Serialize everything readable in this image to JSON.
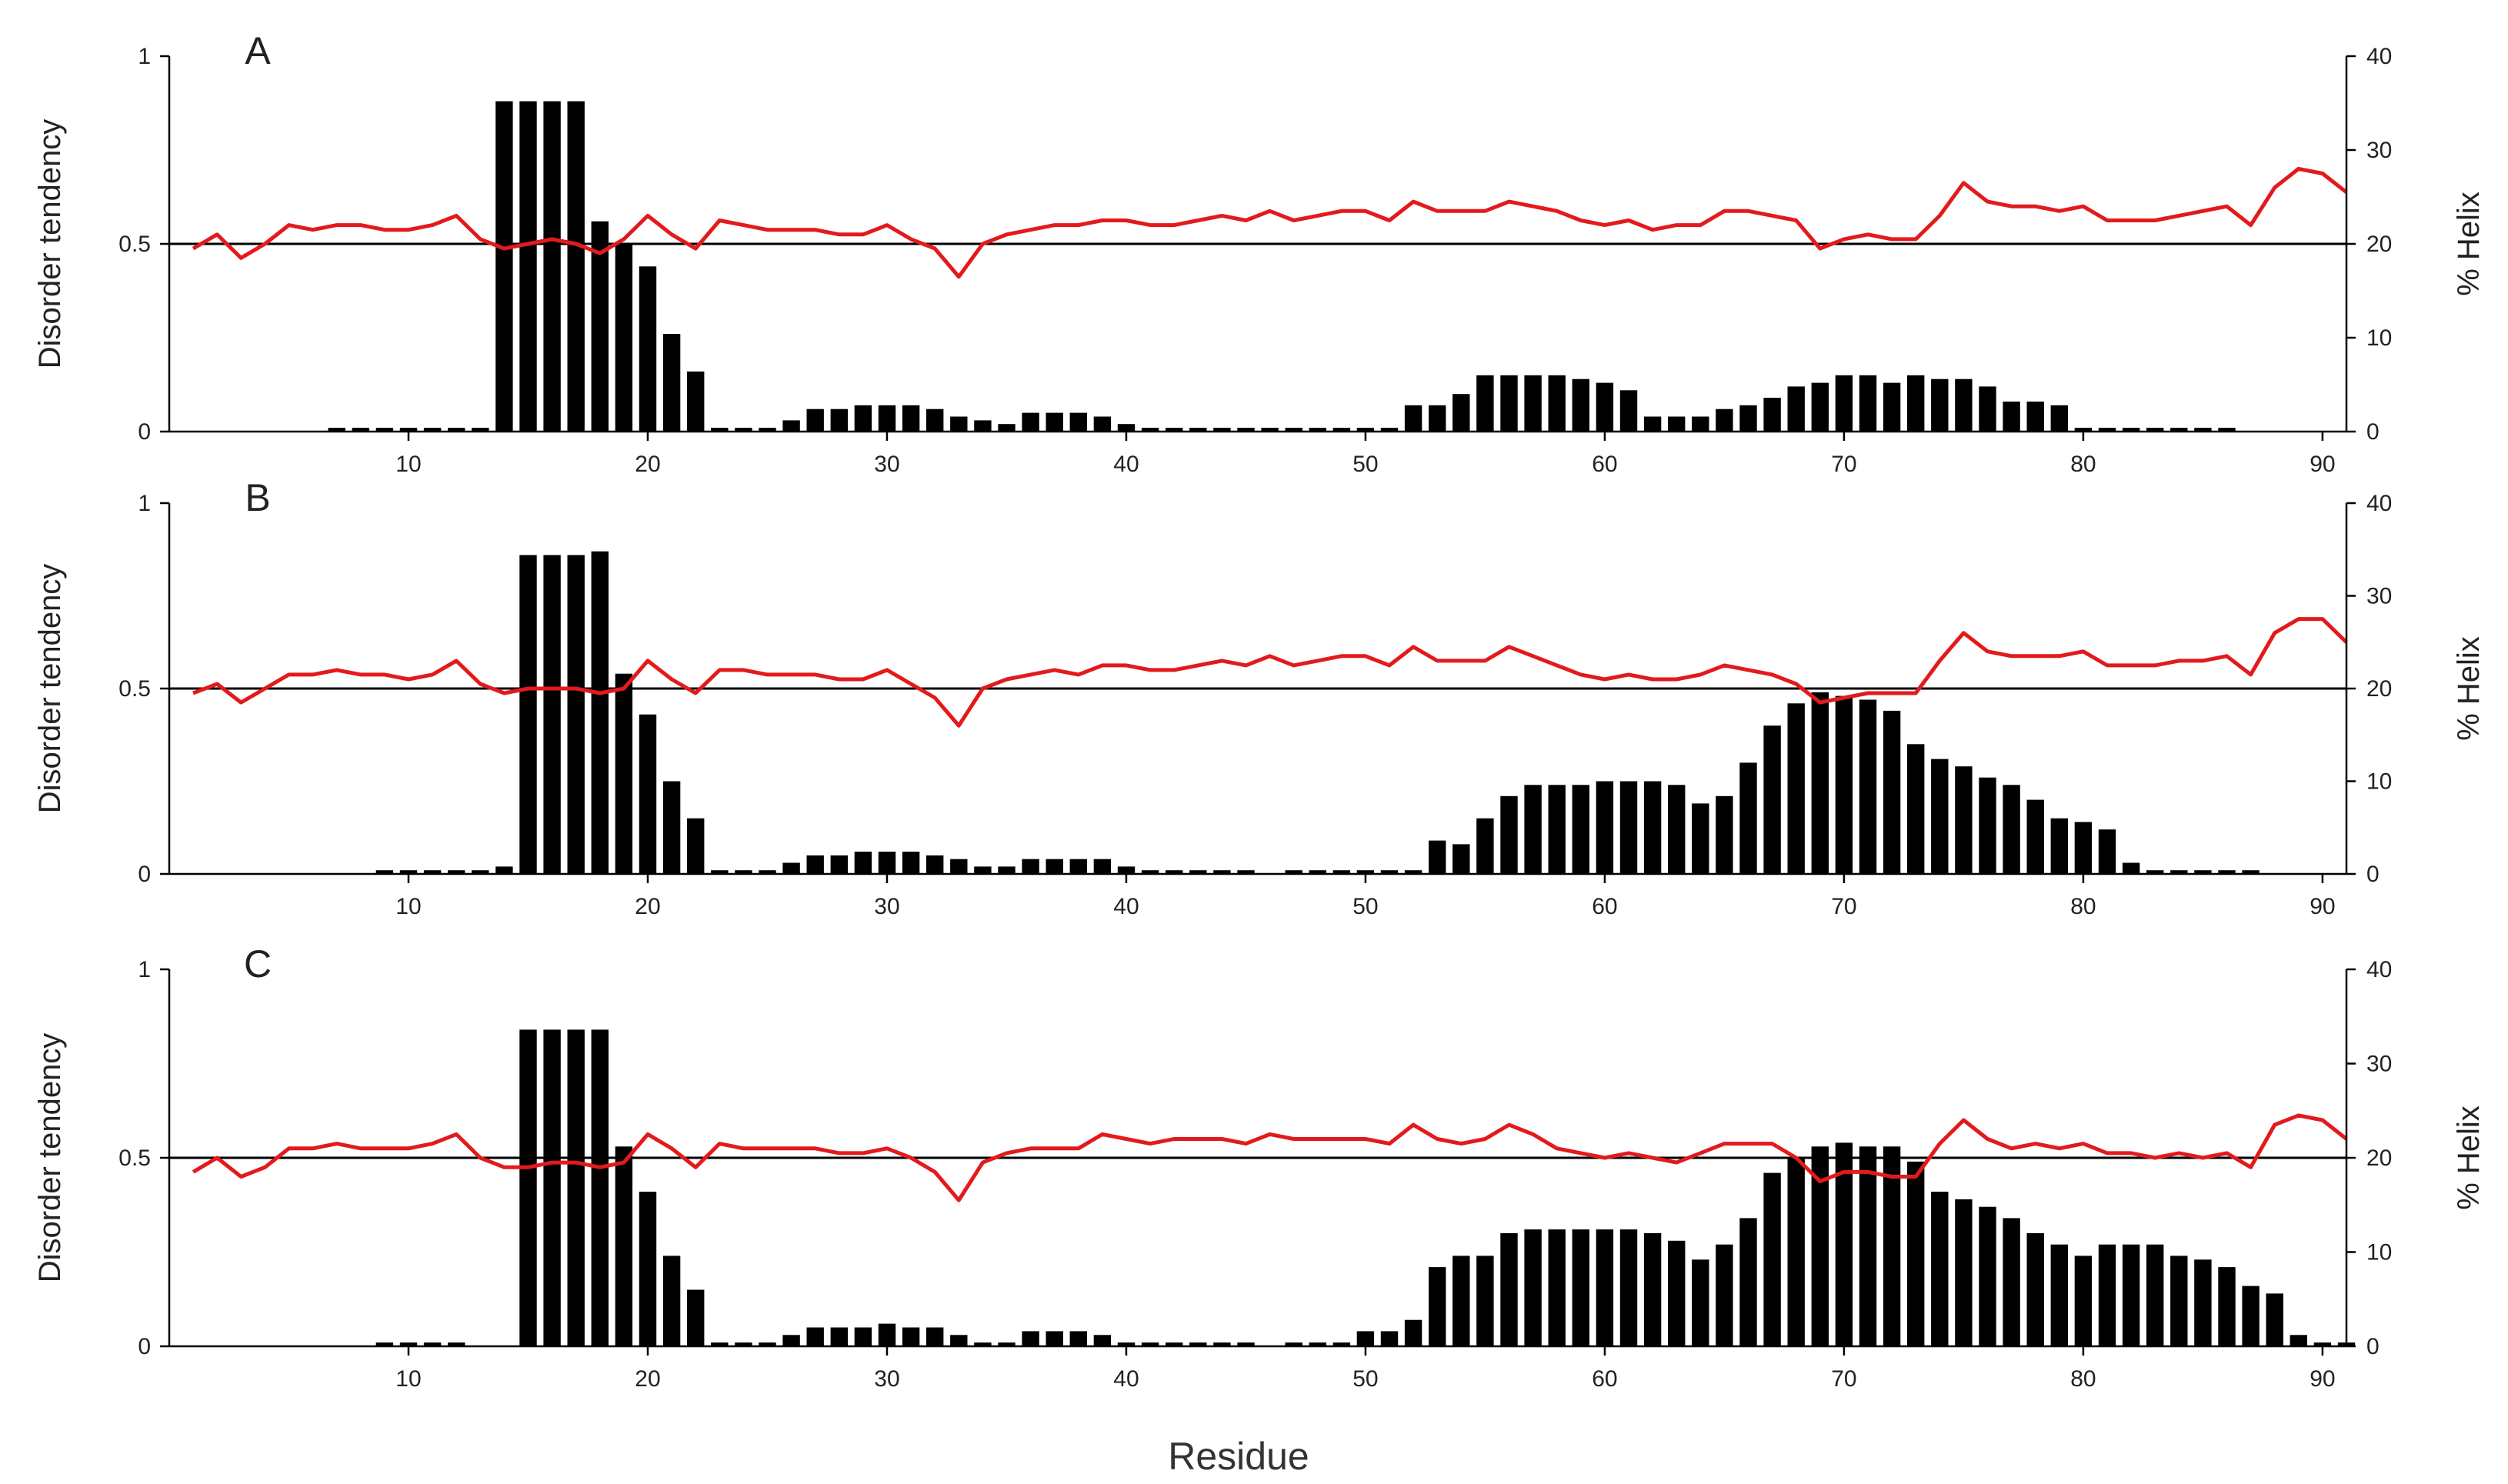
{
  "chart_data": {
    "type": "bar",
    "shared_xlabel": "Residue",
    "x": [
      1,
      2,
      3,
      4,
      5,
      6,
      7,
      8,
      9,
      10,
      11,
      12,
      13,
      14,
      15,
      16,
      17,
      18,
      19,
      20,
      21,
      22,
      23,
      24,
      25,
      26,
      27,
      28,
      29,
      30,
      31,
      32,
      33,
      34,
      35,
      36,
      37,
      38,
      39,
      40,
      41,
      42,
      43,
      44,
      45,
      46,
      47,
      48,
      49,
      50,
      51,
      52,
      53,
      54,
      55,
      56,
      57,
      58,
      59,
      60,
      61,
      62,
      63,
      64,
      65,
      66,
      67,
      68,
      69,
      70,
      71,
      72,
      73,
      74,
      75,
      76,
      77,
      78,
      79,
      80,
      81,
      82,
      83,
      84,
      85,
      86,
      87,
      88,
      89,
      90,
      91
    ],
    "x_ticks": [
      10,
      20,
      30,
      40,
      50,
      60,
      70,
      80,
      90
    ],
    "xlim": [
      0,
      91
    ],
    "colors": {
      "bars": "#000000",
      "helix_line": "#e31a1c",
      "threshold_line": "#000000"
    },
    "panels": [
      {
        "label": "A",
        "ylabel_left": "Disorder tendency",
        "ylabel_right": "% Helix",
        "left_ticks": [
          "0",
          "0.5",
          "1"
        ],
        "right_ticks": [
          "0",
          "10",
          "20",
          "30",
          "40"
        ],
        "ylim_left": [
          0,
          1
        ],
        "ylim_right": [
          0,
          40
        ],
        "threshold": 0.5,
        "series": [
          {
            "type": "bar",
            "axis": "left",
            "values": [
              0,
              0,
              0,
              0,
              0,
              0,
              0.01,
              0.01,
              0.01,
              0.01,
              0.01,
              0.01,
              0.01,
              0.88,
              0.88,
              0.88,
              0.88,
              0.56,
              0.5,
              0.44,
              0.26,
              0.16,
              0.01,
              0.01,
              0.01,
              0.03,
              0.06,
              0.06,
              0.07,
              0.07,
              0.07,
              0.06,
              0.04,
              0.03,
              0.02,
              0.05,
              0.05,
              0.05,
              0.04,
              0.02,
              0.01,
              0.01,
              0.01,
              0.01,
              0.01,
              0.01,
              0.01,
              0.01,
              0.01,
              0.01,
              0.01,
              0.07,
              0.07,
              0.1,
              0.15,
              0.15,
              0.15,
              0.15,
              0.14,
              0.13,
              0.11,
              0.04,
              0.04,
              0.04,
              0.06,
              0.07,
              0.09,
              0.12,
              0.13,
              0.15,
              0.15,
              0.13,
              0.15,
              0.14,
              0.14,
              0.12,
              0.08,
              0.08,
              0.07,
              0.01,
              0.01,
              0.01,
              0.01,
              0.01,
              0.01,
              0.01,
              0,
              0,
              0,
              0,
              0
            ]
          },
          {
            "type": "line",
            "axis": "right",
            "values": [
              19.5,
              21.0,
              18.5,
              20.0,
              22.0,
              21.5,
              22.0,
              22.0,
              21.5,
              21.5,
              22.0,
              23.0,
              20.5,
              19.5,
              20.0,
              20.5,
              20.0,
              19.0,
              20.5,
              23.0,
              21.0,
              19.5,
              22.5,
              22.0,
              21.5,
              21.5,
              21.5,
              21.0,
              21.0,
              22.0,
              20.5,
              19.5,
              16.5,
              20.0,
              21.0,
              21.5,
              22.0,
              22.0,
              22.5,
              22.5,
              22.0,
              22.0,
              22.5,
              23.0,
              22.5,
              23.5,
              22.5,
              23.0,
              23.5,
              23.5,
              22.5,
              24.5,
              23.5,
              23.5,
              23.5,
              24.5,
              24.0,
              23.5,
              22.5,
              22.0,
              22.5,
              21.5,
              22.0,
              22.0,
              23.5,
              23.5,
              23.0,
              22.5,
              19.5,
              20.5,
              21.0,
              20.5,
              20.5,
              23.0,
              26.5,
              24.5,
              24.0,
              24.0,
              23.5,
              24.0,
              22.5,
              22.5,
              22.5,
              23.0,
              23.5,
              24.0,
              22.0,
              26.0,
              28.0,
              27.5,
              25.5
            ]
          }
        ]
      },
      {
        "label": "B",
        "ylabel_left": "Disorder tendency",
        "ylabel_right": "% Helix",
        "left_ticks": [
          "0",
          "0.5",
          "1"
        ],
        "right_ticks": [
          "0",
          "10",
          "20",
          "30",
          "40"
        ],
        "ylim_left": [
          0,
          1
        ],
        "ylim_right": [
          0,
          40
        ],
        "threshold": 0.5,
        "series": [
          {
            "type": "bar",
            "axis": "left",
            "values": [
              0,
              0,
              0,
              0,
              0,
              0,
              0,
              0,
              0.01,
              0.01,
              0.01,
              0.01,
              0.01,
              0.02,
              0.86,
              0.86,
              0.86,
              0.87,
              0.54,
              0.43,
              0.25,
              0.15,
              0.01,
              0.01,
              0.01,
              0.03,
              0.05,
              0.05,
              0.06,
              0.06,
              0.06,
              0.05,
              0.04,
              0.02,
              0.02,
              0.04,
              0.04,
              0.04,
              0.04,
              0.02,
              0.01,
              0.01,
              0.01,
              0.01,
              0.01,
              0,
              0.01,
              0.01,
              0.01,
              0.01,
              0.01,
              0.01,
              0.09,
              0.08,
              0.15,
              0.21,
              0.24,
              0.24,
              0.24,
              0.25,
              0.25,
              0.25,
              0.24,
              0.19,
              0.21,
              0.3,
              0.4,
              0.46,
              0.49,
              0.48,
              0.47,
              0.44,
              0.35,
              0.31,
              0.29,
              0.26,
              0.24,
              0.2,
              0.15,
              0.14,
              0.12,
              0.03,
              0.01,
              0.01,
              0.01,
              0.01,
              0.01,
              0,
              0,
              0,
              0
            ]
          },
          {
            "type": "line",
            "axis": "right",
            "values": [
              19.5,
              20.5,
              18.5,
              20.0,
              21.5,
              21.5,
              22.0,
              21.5,
              21.5,
              21.0,
              21.5,
              23.0,
              20.5,
              19.5,
              20.0,
              20.0,
              20.0,
              19.5,
              20.0,
              23.0,
              21.0,
              19.5,
              22.0,
              22.0,
              21.5,
              21.5,
              21.5,
              21.0,
              21.0,
              22.0,
              20.5,
              19.0,
              16.0,
              20.0,
              21.0,
              21.5,
              22.0,
              21.5,
              22.5,
              22.5,
              22.0,
              22.0,
              22.5,
              23.0,
              22.5,
              23.5,
              22.5,
              23.0,
              23.5,
              23.5,
              22.5,
              24.5,
              23.0,
              23.0,
              23.0,
              24.5,
              23.5,
              22.5,
              21.5,
              21.0,
              21.5,
              21.0,
              21.0,
              21.5,
              22.5,
              22.0,
              21.5,
              20.5,
              18.5,
              19.0,
              19.5,
              19.5,
              19.5,
              23.0,
              26.0,
              24.0,
              23.5,
              23.5,
              23.5,
              24.0,
              22.5,
              22.5,
              22.5,
              23.0,
              23.0,
              23.5,
              21.5,
              26.0,
              27.5,
              27.5,
              25.0
            ]
          }
        ]
      },
      {
        "label": "C",
        "ylabel_left": "Disorder tendency",
        "ylabel_right": "% Helix",
        "left_ticks": [
          "0",
          "0.5",
          "1"
        ],
        "right_ticks": [
          "0",
          "10",
          "20",
          "30",
          "40"
        ],
        "ylim_left": [
          0,
          1
        ],
        "ylim_right": [
          0,
          40
        ],
        "threshold": 0.5,
        "series": [
          {
            "type": "bar",
            "axis": "left",
            "values": [
              0,
              0,
              0,
              0,
              0,
              0,
              0,
              0,
              0.01,
              0.01,
              0.01,
              0.01,
              0,
              0,
              0.84,
              0.84,
              0.84,
              0.84,
              0.53,
              0.41,
              0.24,
              0.15,
              0.01,
              0.01,
              0.01,
              0.03,
              0.05,
              0.05,
              0.05,
              0.06,
              0.05,
              0.05,
              0.03,
              0.01,
              0.01,
              0.04,
              0.04,
              0.04,
              0.03,
              0.01,
              0.01,
              0.01,
              0.01,
              0.01,
              0.01,
              0,
              0.01,
              0.01,
              0.01,
              0.04,
              0.04,
              0.07,
              0.21,
              0.24,
              0.24,
              0.3,
              0.31,
              0.31,
              0.31,
              0.31,
              0.31,
              0.3,
              0.28,
              0.23,
              0.27,
              0.34,
              0.46,
              0.5,
              0.53,
              0.54,
              0.53,
              0.53,
              0.49,
              0.41,
              0.39,
              0.37,
              0.34,
              0.3,
              0.27,
              0.24,
              0.27,
              0.27,
              0.27,
              0.24,
              0.23,
              0.21,
              0.16,
              0.14,
              0.03,
              0.01,
              0.01
            ]
          },
          {
            "type": "line",
            "axis": "right",
            "values": [
              18.5,
              20.0,
              18.0,
              19.0,
              21.0,
              21.0,
              21.5,
              21.0,
              21.0,
              21.0,
              21.5,
              22.5,
              20.0,
              19.0,
              19.0,
              19.5,
              19.5,
              19.0,
              19.5,
              22.5,
              21.0,
              19.0,
              21.5,
              21.0,
              21.0,
              21.0,
              21.0,
              20.5,
              20.5,
              21.0,
              20.0,
              18.5,
              15.5,
              19.5,
              20.5,
              21.0,
              21.0,
              21.0,
              22.5,
              22.0,
              21.5,
              22.0,
              22.0,
              22.0,
              21.5,
              22.5,
              22.0,
              22.0,
              22.0,
              22.0,
              21.5,
              23.5,
              22.0,
              21.5,
              22.0,
              23.5,
              22.5,
              21.0,
              20.5,
              20.0,
              20.5,
              20.0,
              19.5,
              20.5,
              21.5,
              21.5,
              21.5,
              20.0,
              17.5,
              18.5,
              18.5,
              18.0,
              18.0,
              21.5,
              24.0,
              22.0,
              21.0,
              21.5,
              21.0,
              21.5,
              20.5,
              20.5,
              20.0,
              20.5,
              20.0,
              20.5,
              19.0,
              23.5,
              24.5,
              24.0,
              22.0
            ]
          }
        ]
      }
    ]
  }
}
